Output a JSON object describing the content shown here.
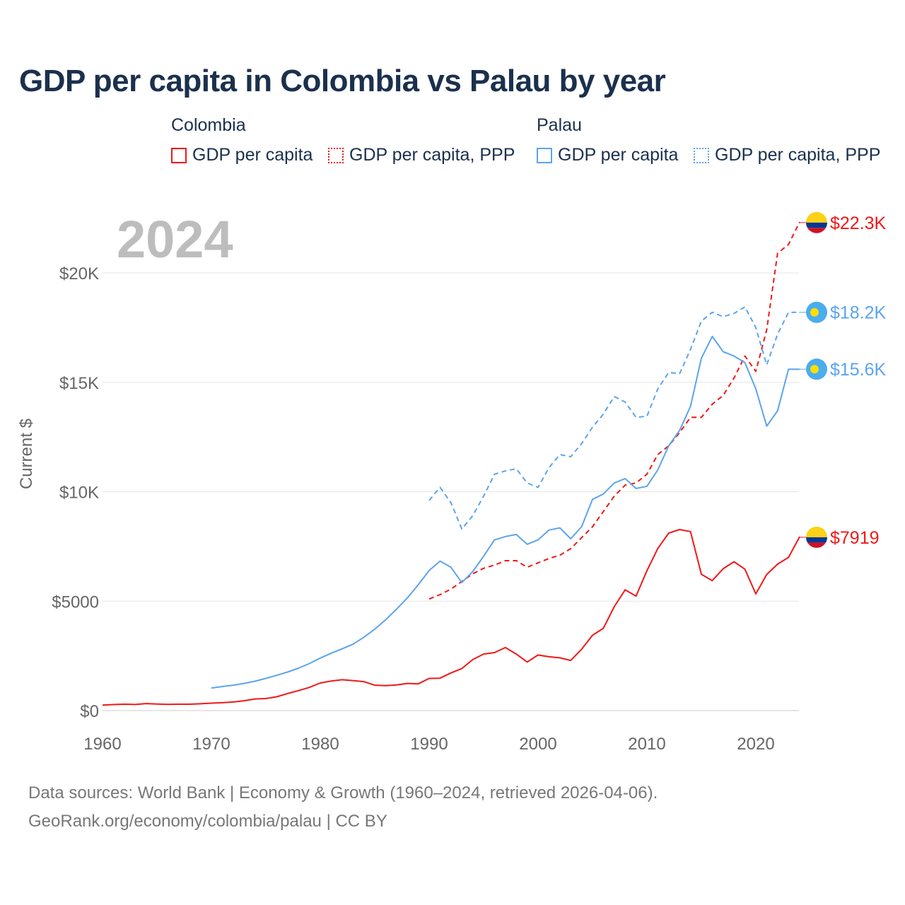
{
  "title": "GDP per capita in Colombia vs Palau by year",
  "year_label": "2024",
  "legend": {
    "groups": [
      {
        "name": "Colombia",
        "items": [
          "GDP per capita",
          "GDP per capita, PPP"
        ]
      },
      {
        "name": "Palau",
        "items": [
          "GDP per capita",
          "GDP per capita, PPP"
        ]
      }
    ]
  },
  "source_line1": "Data sources: World Bank | Economy & Growth (1960–2024, retrieved 2026-04-06).",
  "source_line2": "GeoRank.org/economy/colombia/palau | CC BY",
  "colors": {
    "colombia": "#f01818",
    "palau": "#5ca4ec",
    "title": "#1b304d",
    "grid": "#e6e6e6"
  },
  "chart_data": {
    "type": "line",
    "title": "GDP per capita in Colombia vs Palau by year",
    "xlabel": "",
    "ylabel": "Current $",
    "xlim": [
      1960,
      2024
    ],
    "ylim": [
      0,
      22300
    ],
    "xticks": [
      1960,
      1970,
      1980,
      1990,
      2000,
      2010,
      2020
    ],
    "yticks": [
      {
        "v": 0,
        "label": "$0"
      },
      {
        "v": 5000,
        "label": "$5000"
      },
      {
        "v": 10000,
        "label": "$10K"
      },
      {
        "v": 15000,
        "label": "$15K"
      },
      {
        "v": 20000,
        "label": "$20K"
      }
    ],
    "grid": true,
    "series": [
      {
        "name": "Colombia GDP per capita",
        "country": "colombia",
        "dashed": false,
        "start": 1960,
        "end_label": "$7919",
        "values": [
          253,
          275,
          290,
          278,
          320,
          300,
          280,
          290,
          290,
          310,
          340,
          360,
          390,
          450,
          530,
          550,
          630,
          780,
          910,
          1060,
          1260,
          1350,
          1410,
          1370,
          1320,
          1160,
          1140,
          1170,
          1240,
          1220,
          1470,
          1480,
          1720,
          1920,
          2330,
          2580,
          2650,
          2880,
          2580,
          2220,
          2540,
          2460,
          2410,
          2290,
          2800,
          3440,
          3760,
          4750,
          5520,
          5230,
          6390,
          7410,
          8110,
          8270,
          8180,
          6230,
          5940,
          6480,
          6800,
          6460,
          5330,
          6220,
          6690,
          7000,
          7919
        ]
      },
      {
        "name": "Colombia GDP per capita, PPP",
        "country": "colombia",
        "dashed": true,
        "start": 1990,
        "end_label": "$22.3K",
        "values": [
          5100,
          5300,
          5550,
          5900,
          6250,
          6500,
          6650,
          6850,
          6850,
          6550,
          6750,
          6950,
          7100,
          7400,
          7900,
          8400,
          9100,
          9800,
          10300,
          10400,
          10800,
          11700,
          12100,
          12700,
          13400,
          13400,
          14000,
          14400,
          15200,
          16200,
          15500,
          17400,
          20900,
          21300,
          22300
        ]
      },
      {
        "name": "Palau GDP per capita",
        "country": "palau",
        "dashed": false,
        "start": 1970,
        "end_label": "$15.6K",
        "values": [
          1030,
          1100,
          1160,
          1240,
          1340,
          1470,
          1610,
          1760,
          1940,
          2150,
          2400,
          2620,
          2820,
          3030,
          3350,
          3720,
          4150,
          4630,
          5150,
          5750,
          6400,
          6830,
          6550,
          5850,
          6350,
          7050,
          7800,
          7950,
          8050,
          7600,
          7800,
          8250,
          8350,
          7850,
          8400,
          9650,
          9900,
          10400,
          10600,
          10150,
          10250,
          11000,
          12100,
          12800,
          13900,
          16100,
          17100,
          16400,
          16200,
          15900,
          14700,
          13000,
          13700,
          15600,
          15600
        ]
      },
      {
        "name": "Palau GDP per capita, PPP",
        "country": "palau",
        "dashed": true,
        "start": 1990,
        "end_label": "$18.2K",
        "values": [
          9600,
          10200,
          9500,
          8300,
          8900,
          9800,
          10800,
          10950,
          11050,
          10400,
          10200,
          11100,
          11700,
          11600,
          12200,
          12950,
          13550,
          14350,
          14100,
          13400,
          13450,
          14700,
          15450,
          15400,
          16500,
          17800,
          18200,
          18000,
          18150,
          18450,
          17500,
          15800,
          17200,
          18200,
          18200
        ]
      }
    ]
  }
}
